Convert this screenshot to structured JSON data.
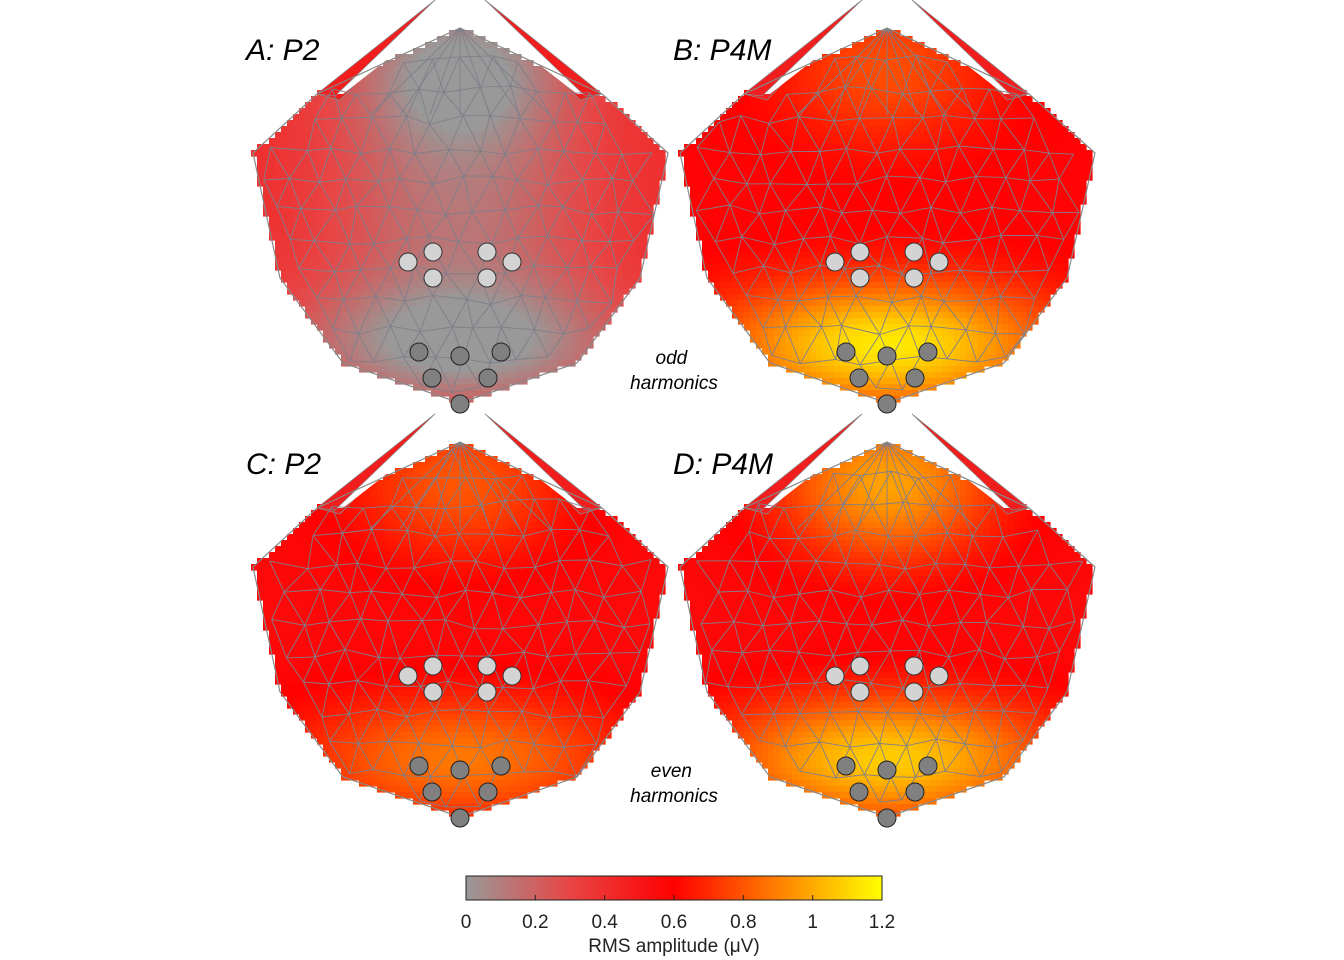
{
  "panels": [
    {
      "id": "A",
      "label": "A: P2",
      "fields": {
        "base": 0.42,
        "frontal": 0.0,
        "occipital": 0.0,
        "center_dip": 0.28
      }
    },
    {
      "id": "B",
      "label": "B: P4M",
      "fields": {
        "base": 0.58,
        "frontal": 0.78,
        "occipital": 1.15,
        "center_dip": 0.0
      }
    },
    {
      "id": "C",
      "label": "C: P2",
      "fields": {
        "base": 0.56,
        "frontal": 0.8,
        "occipital": 0.88,
        "center_dip": 0.0
      }
    },
    {
      "id": "D",
      "label": "D: P4M",
      "fields": {
        "base": 0.56,
        "frontal": 0.98,
        "occipital": 1.08,
        "center_dip": 0.0
      }
    }
  ],
  "annotations": {
    "odd": [
      "odd",
      "harmonics"
    ],
    "even": [
      "even",
      "harmonics"
    ]
  },
  "colorbar": {
    "title": "RMS amplitude (μV)",
    "ticks": [
      "0",
      "0.2",
      "0.4",
      "0.6",
      "0.8",
      "1",
      "1.2"
    ],
    "min": 0,
    "max": 1.2,
    "stops": [
      "#999999",
      "#e84545",
      "#ff0000",
      "#ff8000",
      "#ffff00"
    ]
  },
  "colors": {
    "mesh": "#7f7f8a",
    "outline": "#888888",
    "electrode_light": "#d3d3d3",
    "electrode_dark": "#808080"
  }
}
